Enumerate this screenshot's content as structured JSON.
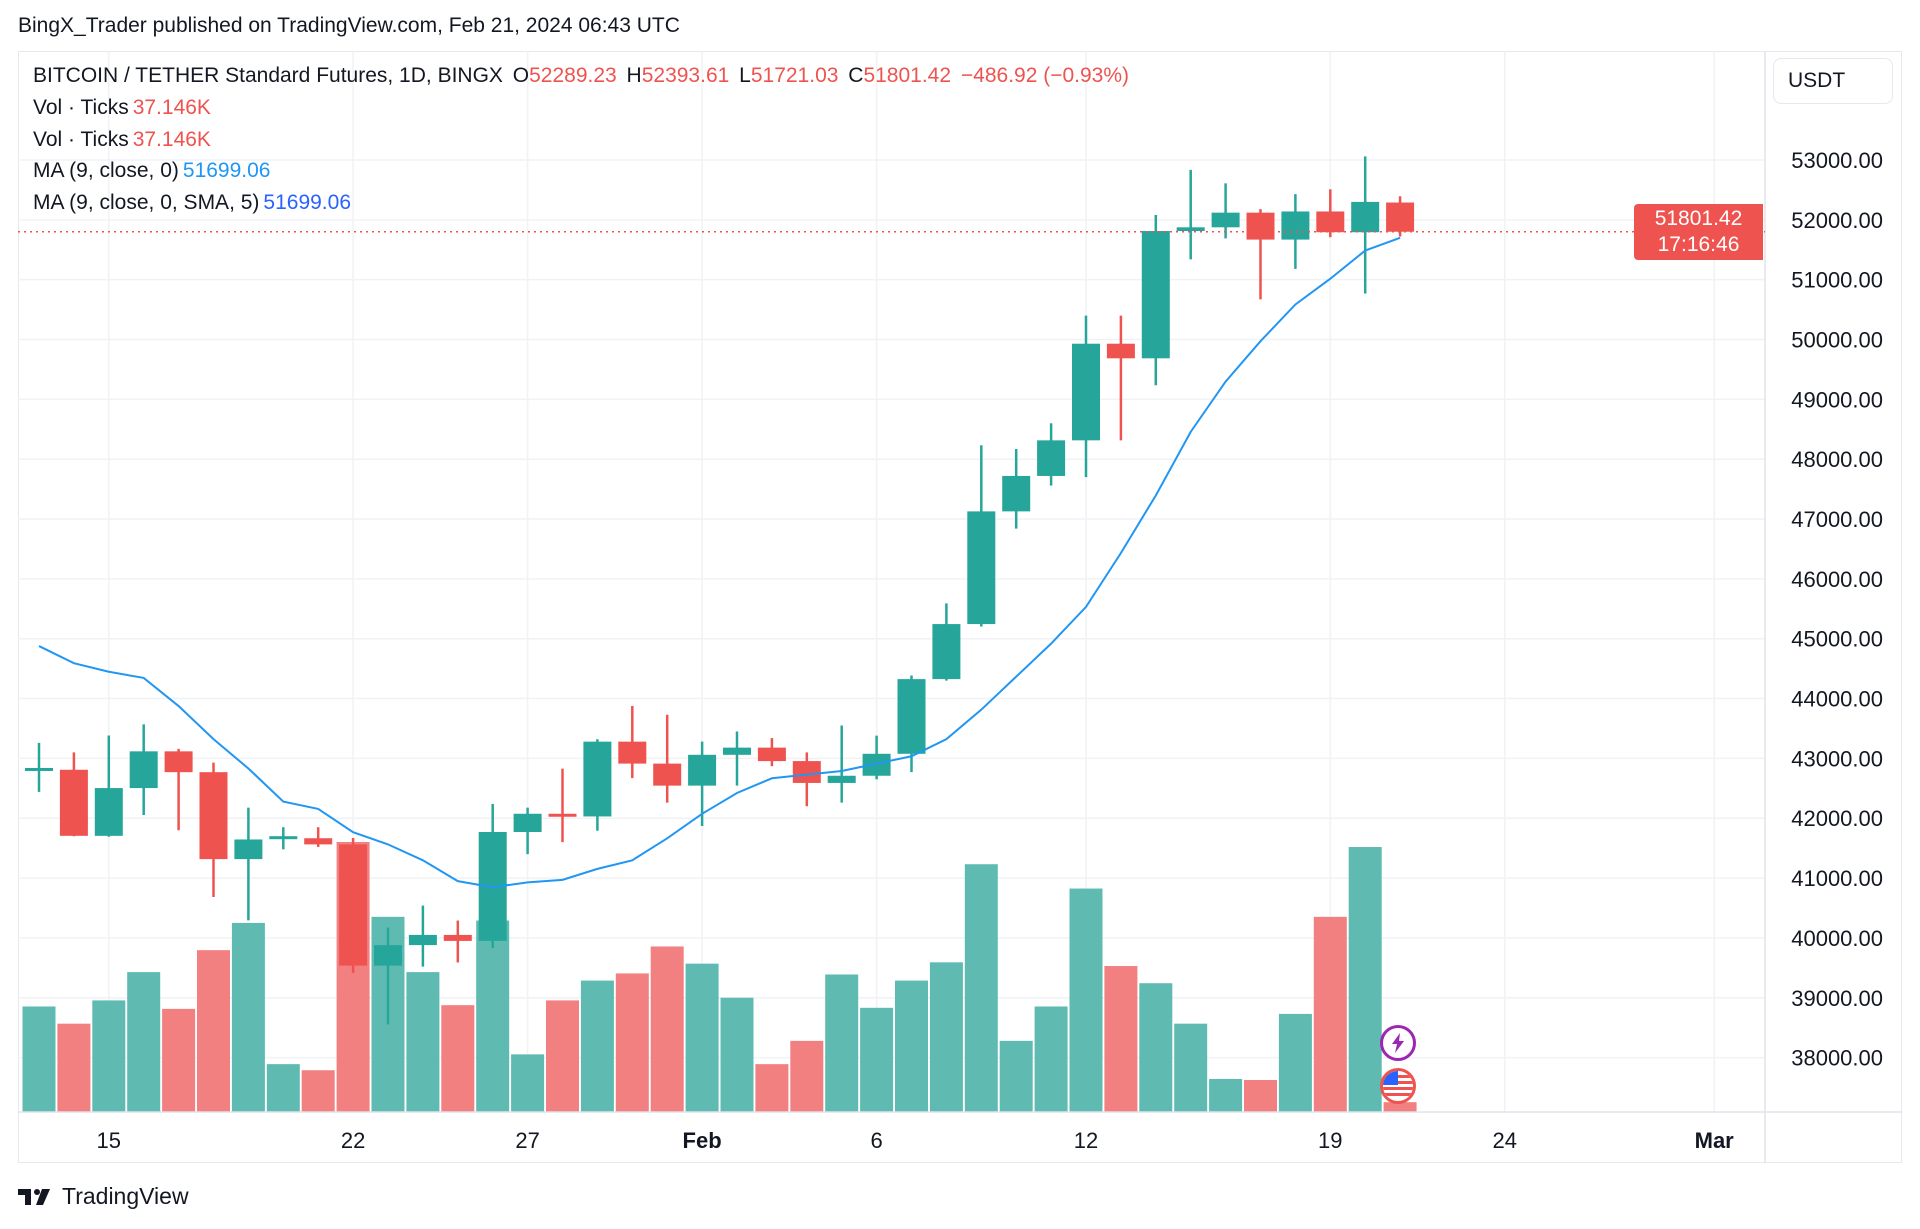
{
  "attribution": "BingX_Trader published on TradingView.com, Feb 21, 2024 06:43 UTC",
  "legend": {
    "symbol": "BITCOIN / TETHER Standard Futures, 1D, BINGX",
    "o_label": "O",
    "o": "52289.23",
    "h_label": "H",
    "h": "52393.61",
    "l_label": "L",
    "l": "51721.03",
    "c_label": "C",
    "c": "51801.42",
    "change": "−486.92 (−0.93%)",
    "vol1_label": "Vol · Ticks",
    "vol1": "37.146K",
    "vol2_label": "Vol · Ticks",
    "vol2": "37.146K",
    "ma1_label": "MA (9, close, 0)",
    "ma1": "51699.06",
    "ma2_label": "MA (9, close, 0, SMA, 5)",
    "ma2": "51699.06"
  },
  "currency_button": "USDT",
  "last_price": {
    "price": "51801.42",
    "countdown": "17:16:46"
  },
  "brand": "TradingView",
  "colors": {
    "up": "#26a69a",
    "down": "#ef5350",
    "up_vol": "#5fbbb2",
    "down_vol": "#f28080",
    "ma": "#2196f3",
    "grid": "#f0f2f5"
  },
  "event_icons": [
    "lightning-icon",
    "us-flag-icon"
  ],
  "chart_data": {
    "type": "candlestick",
    "ylim": [
      37300,
      53600
    ],
    "y_ticks": [
      "53000.00",
      "52000.00",
      "51000.00",
      "50000.00",
      "49000.00",
      "48000.00",
      "47000.00",
      "46000.00",
      "45000.00",
      "44000.00",
      "43000.00",
      "42000.00",
      "41000.00",
      "40000.00",
      "39000.00",
      "38000.00"
    ],
    "x_ticks": [
      {
        "label": "15",
        "date": "2024-01-15",
        "bold": false
      },
      {
        "label": "22",
        "date": "2024-01-22",
        "bold": false
      },
      {
        "label": "27",
        "date": "2024-01-27",
        "bold": false
      },
      {
        "label": "Feb",
        "date": "2024-02-01",
        "bold": true
      },
      {
        "label": "6",
        "date": "2024-02-06",
        "bold": false
      },
      {
        "label": "12",
        "date": "2024-02-12",
        "bold": false
      },
      {
        "label": "19",
        "date": "2024-02-19",
        "bold": false
      },
      {
        "label": "24",
        "date": "2024-02-24",
        "bold": false
      },
      {
        "label": "Mar",
        "date": "2024-03-01",
        "bold": true
      }
    ],
    "x_range": [
      "2024-01-12",
      "2024-03-04"
    ],
    "candles": [
      {
        "d": "2024-01-13",
        "o": 42800,
        "h": 43260,
        "l": 42440,
        "c": 42840
      },
      {
        "d": "2024-01-14",
        "o": 42810,
        "h": 43100,
        "l": 41700,
        "c": 41706
      },
      {
        "d": "2024-01-15",
        "o": 41706,
        "h": 43383,
        "l": 41690,
        "c": 42504
      },
      {
        "d": "2024-01-16",
        "o": 42504,
        "h": 43568,
        "l": 42054,
        "c": 43118
      },
      {
        "d": "2024-01-17",
        "o": 43118,
        "h": 43160,
        "l": 41800,
        "c": 42770
      },
      {
        "d": "2024-01-18",
        "o": 42770,
        "h": 42930,
        "l": 40683,
        "c": 41317
      },
      {
        "d": "2024-01-19",
        "o": 41317,
        "h": 42177,
        "l": 40294,
        "c": 41645
      },
      {
        "d": "2024-01-20",
        "o": 41670,
        "h": 41850,
        "l": 41480,
        "c": 41700
      },
      {
        "d": "2024-01-21",
        "o": 41666,
        "h": 41850,
        "l": 41520,
        "c": 41563
      },
      {
        "d": "2024-01-22",
        "o": 41563,
        "h": 41670,
        "l": 39414,
        "c": 39537
      },
      {
        "d": "2024-01-23",
        "o": 39537,
        "h": 40175,
        "l": 38555,
        "c": 39880
      },
      {
        "d": "2024-01-24",
        "o": 39880,
        "h": 40540,
        "l": 39520,
        "c": 40050
      },
      {
        "d": "2024-01-25",
        "o": 40050,
        "h": 40290,
        "l": 39590,
        "c": 39950
      },
      {
        "d": "2024-01-26",
        "o": 39950,
        "h": 42240,
        "l": 39830,
        "c": 41770
      },
      {
        "d": "2024-01-27",
        "o": 41770,
        "h": 42177,
        "l": 41400,
        "c": 42075
      },
      {
        "d": "2024-01-28",
        "o": 42075,
        "h": 42830,
        "l": 41600,
        "c": 42030
      },
      {
        "d": "2024-01-29",
        "o": 42030,
        "h": 43320,
        "l": 41790,
        "c": 43280
      },
      {
        "d": "2024-01-30",
        "o": 43280,
        "h": 43875,
        "l": 42670,
        "c": 42913
      },
      {
        "d": "2024-01-31",
        "o": 42913,
        "h": 43730,
        "l": 42260,
        "c": 42545
      },
      {
        "d": "2024-02-01",
        "o": 42545,
        "h": 43280,
        "l": 41870,
        "c": 43060
      },
      {
        "d": "2024-02-02",
        "o": 43060,
        "h": 43450,
        "l": 42545,
        "c": 43180
      },
      {
        "d": "2024-02-03",
        "o": 43180,
        "h": 43340,
        "l": 42870,
        "c": 42955
      },
      {
        "d": "2024-02-04",
        "o": 42955,
        "h": 43100,
        "l": 42200,
        "c": 42590
      },
      {
        "d": "2024-02-05",
        "o": 42590,
        "h": 43550,
        "l": 42260,
        "c": 42710
      },
      {
        "d": "2024-02-06",
        "o": 42710,
        "h": 43380,
        "l": 42650,
        "c": 43077
      },
      {
        "d": "2024-02-07",
        "o": 43077,
        "h": 44386,
        "l": 42770,
        "c": 44325
      },
      {
        "d": "2024-02-08",
        "o": 44325,
        "h": 45590,
        "l": 44300,
        "c": 45245
      },
      {
        "d": "2024-02-09",
        "o": 45245,
        "h": 48233,
        "l": 45205,
        "c": 47128
      },
      {
        "d": "2024-02-10",
        "o": 47128,
        "h": 48170,
        "l": 46840,
        "c": 47720
      },
      {
        "d": "2024-02-11",
        "o": 47720,
        "h": 48600,
        "l": 47560,
        "c": 48315
      },
      {
        "d": "2024-02-12",
        "o": 48315,
        "h": 50400,
        "l": 47700,
        "c": 49930
      },
      {
        "d": "2024-02-13",
        "o": 49930,
        "h": 50400,
        "l": 48315,
        "c": 49686
      },
      {
        "d": "2024-02-14",
        "o": 49686,
        "h": 52080,
        "l": 49235,
        "c": 51813
      },
      {
        "d": "2024-02-15",
        "o": 51813,
        "h": 52836,
        "l": 51340,
        "c": 51875
      },
      {
        "d": "2024-02-16",
        "o": 51875,
        "h": 52610,
        "l": 51690,
        "c": 52120
      },
      {
        "d": "2024-02-17",
        "o": 52120,
        "h": 52180,
        "l": 50670,
        "c": 51670
      },
      {
        "d": "2024-02-18",
        "o": 51670,
        "h": 52430,
        "l": 51180,
        "c": 52140
      },
      {
        "d": "2024-02-19",
        "o": 52140,
        "h": 52510,
        "l": 51710,
        "c": 51793
      },
      {
        "d": "2024-02-20",
        "o": 51793,
        "h": 53060,
        "l": 50770,
        "c": 52300
      },
      {
        "d": "2024-02-21",
        "o": 52289.23,
        "h": 52393.61,
        "l": 51721.03,
        "c": 51801.42
      }
    ],
    "volume_k": [
      399,
      334,
      422,
      529,
      390,
      612,
      715,
      181,
      158,
      1021,
      738,
      529,
      404,
      724,
      218,
      422,
      497,
      524,
      626,
      561,
      432,
      181,
      269,
      520,
      394,
      497,
      566,
      937,
      269,
      399,
      845,
      552,
      487,
      334,
      125,
      121,
      371,
      738,
      1002,
      37.146
    ],
    "ma": [
      44877,
      44591,
      44448,
      44345,
      43875,
      43322,
      42831,
      42279,
      42156,
      41767,
      41563,
      41297,
      40949,
      40847,
      40929,
      40970,
      41154,
      41297,
      41665,
      42074,
      42422,
      42668,
      42729,
      42790,
      42913,
      43036,
      43322,
      43814,
      44366,
      44918,
      45532,
      46432,
      47394,
      48457,
      49297,
      49972,
      50586,
      51016,
      51487,
      51699.06
    ],
    "last_price_line": 51801.42
  }
}
